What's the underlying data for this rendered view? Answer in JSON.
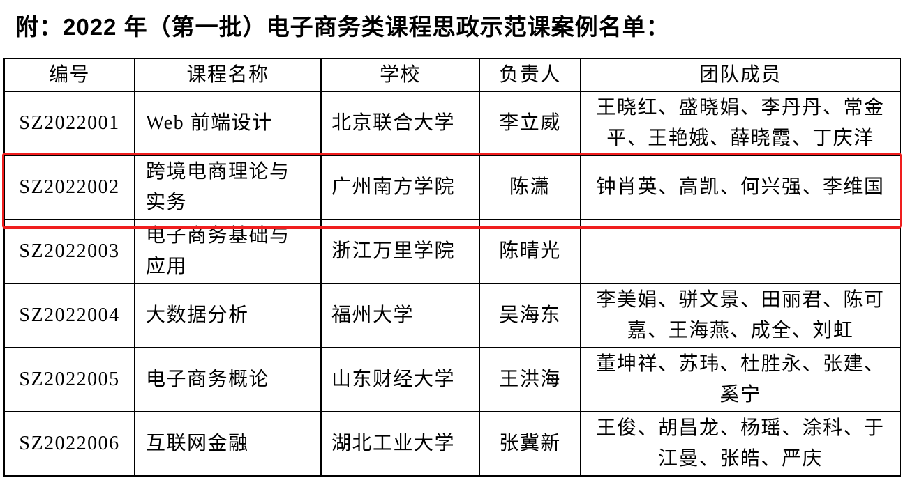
{
  "title": "附：2022 年（第一批）电子商务类课程思政示范课案例名单：",
  "columns": [
    "编号",
    "课程名称",
    "学校",
    "负责人",
    "团队成员"
  ],
  "rows": [
    {
      "id": "SZ2022001",
      "course": "Web 前端设计",
      "school": "北京联合大学",
      "lead": "李立威",
      "members": "王晓红、盛晓娟、李丹丹、常金平、王艳娥、薛晓霞、丁庆洋"
    },
    {
      "id": "SZ2022002",
      "course": "跨境电商理论与实务",
      "school": "广州南方学院",
      "lead": "陈潇",
      "members": "钟肖英、高凯、何兴强、李维国"
    },
    {
      "id": "SZ2022003",
      "course": "电子商务基础与应用",
      "school": "浙江万里学院",
      "lead": "陈晴光",
      "members": ""
    },
    {
      "id": "SZ2022004",
      "course": "大数据分析",
      "school": "福州大学",
      "lead": "吴海东",
      "members": "李美娟、骈文景、田丽君、陈可嘉、王海燕、成全、刘虹"
    },
    {
      "id": "SZ2022005",
      "course": "电子商务概论",
      "school": "山东财经大学",
      "lead": "王洪海",
      "members": "董坤祥、苏玮、杜胜永、张建、奚宁"
    },
    {
      "id": "SZ2022006",
      "course": "互联网金融",
      "school": "湖北工业大学",
      "lead": "张冀新",
      "members": "王俊、胡昌龙、杨瑶、涂科、于江曼、张皓、严庆"
    }
  ],
  "highlight_color": "#f01e1e",
  "highlighted_row": "SZ2022002"
}
